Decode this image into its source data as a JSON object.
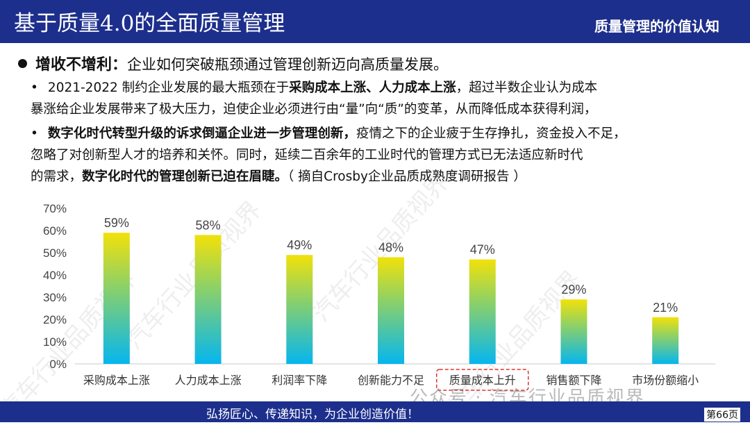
{
  "header": {
    "title": "基于质量4.0的全面质量管理",
    "section": "质量管理的价值认知"
  },
  "intro": {
    "heading": "增收不增利：",
    "text": "企业如何突破瓶颈通过管理创新迈向高质量发展。"
  },
  "point1": {
    "bullet": "•",
    "pre": "2021-2022 制约企业发展的最大瓶颈在于",
    "bold": "采购成本上涨、人力成本上涨",
    "post": "，超过半数企业认为成本",
    "line2": "暴涨给企业发展带来了极大压力，迫使企业必须进行由“量”向“质”的变革，从而降低成本获得利润，"
  },
  "point2": {
    "bullet": "•",
    "bold1": "数字化时代转型升级的诉求倒逼企业进一步管理创新，",
    "post1": "疫情之下的企业疲于生存挣扎，资金投入不足，",
    "line2": "忽略了对创新型人才的培养和关怀。同时，延续二百余年的工业时代的管理方式已无法适应新时代",
    "line3_pre": "的需求，",
    "line3_bold": "数字化时代的管理创新已迫在眉睫。",
    "line3_post": "（ 摘自Crosby企业品质成熟度调研报告 ）"
  },
  "chart_data": {
    "type": "bar",
    "categories": [
      "采购成本上涨",
      "人力成本上涨",
      "利润率下降",
      "创新能力不足",
      "质量成本上升",
      "销售额下降",
      "市场份额缩小"
    ],
    "values": [
      59,
      58,
      49,
      48,
      47,
      29,
      21
    ],
    "value_labels": [
      "59%",
      "58%",
      "49%",
      "48%",
      "47%",
      "29%",
      "21%"
    ],
    "yticks": [
      "0%",
      "10%",
      "20%",
      "30%",
      "40%",
      "50%",
      "60%",
      "70%"
    ],
    "ylim": [
      0,
      70
    ],
    "highlighted_category": "质量成本上升",
    "grid": false,
    "colors": {
      "bar_top": "#f2e10a",
      "bar_bottom": "#05b6ef",
      "highlight_box": "#e03030"
    }
  },
  "watermarks": {
    "bottom": "公众号 · 汽车行业品质视界",
    "diagonal": "汽车行业品质视界"
  },
  "footer": {
    "slogan": "弘扬匠心、传递知识，为企业创造价值！",
    "page": "第66页"
  }
}
